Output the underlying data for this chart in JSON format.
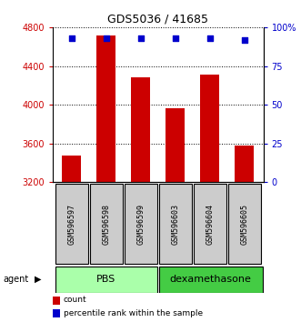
{
  "title": "GDS5036 / 41685",
  "samples": [
    "GSM596597",
    "GSM596598",
    "GSM596599",
    "GSM596603",
    "GSM596604",
    "GSM596605"
  ],
  "counts": [
    3470,
    4720,
    4280,
    3960,
    4310,
    3580
  ],
  "percentile_ranks": [
    93,
    93,
    93,
    93,
    93,
    92
  ],
  "groups": [
    "PBS",
    "PBS",
    "PBS",
    "dexamethasone",
    "dexamethasone",
    "dexamethasone"
  ],
  "group_colors": {
    "PBS": "#aaffaa",
    "dexamethasone": "#44cc44"
  },
  "bar_color": "#CC0000",
  "dot_color": "#0000CC",
  "ylim_left": [
    3200,
    4800
  ],
  "ylim_right": [
    0,
    100
  ],
  "yticks_left": [
    3200,
    3600,
    4000,
    4400,
    4800
  ],
  "yticks_right": [
    0,
    25,
    50,
    75,
    100
  ],
  "ylabel_left_color": "#CC0000",
  "ylabel_right_color": "#0000CC",
  "background_color": "#ffffff"
}
